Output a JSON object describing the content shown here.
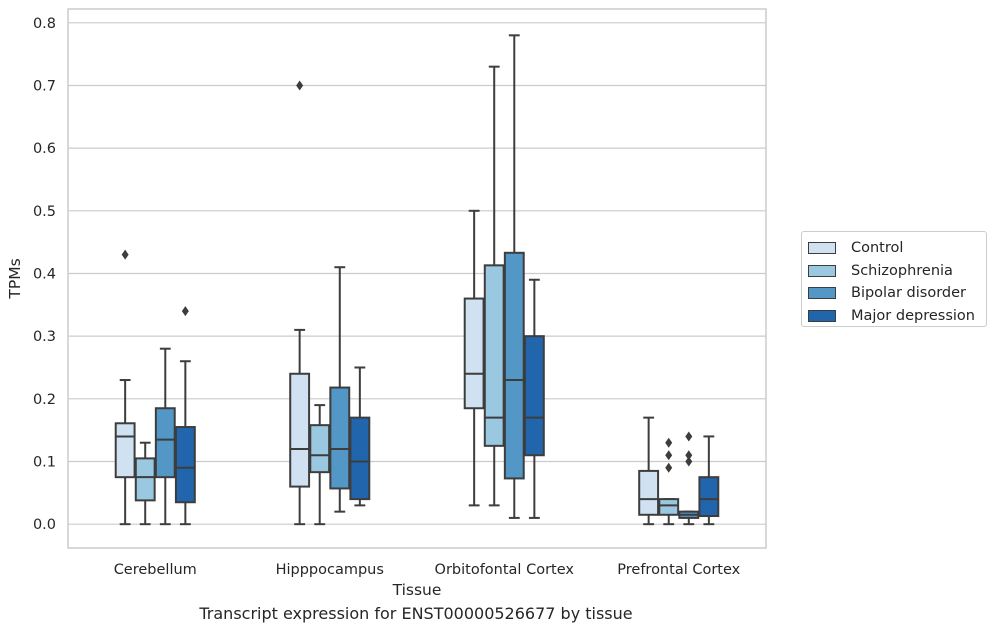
{
  "caption": "Transcript expression for ENST00000526677 by tissue",
  "chart_data": {
    "type": "box",
    "title": "",
    "xlabel": "Tissue",
    "ylabel": "TPMs",
    "ylim": [
      -0.038,
      0.822
    ],
    "yticks": [
      0.0,
      0.1,
      0.2,
      0.3,
      0.4,
      0.5,
      0.6,
      0.7,
      0.8
    ],
    "ytick_labels": [
      "0.0",
      "0.1",
      "0.2",
      "0.3",
      "0.4",
      "0.5",
      "0.6",
      "0.7",
      "0.8"
    ],
    "grid": "horizontal",
    "legend_position": "right",
    "categories": [
      "Cerebellum",
      "Hipppocampus",
      "Orbitofontal Cortex",
      "Prefrontal Cortex"
    ],
    "series": [
      {
        "name": "Control",
        "color": "#d0e1f2",
        "boxes": [
          {
            "whislo": 0.0,
            "q1": 0.075,
            "med": 0.14,
            "q3": 0.161,
            "whishi": 0.23,
            "fliers": [
              0.43
            ]
          },
          {
            "whislo": 0.0,
            "q1": 0.06,
            "med": 0.12,
            "q3": 0.24,
            "whishi": 0.31,
            "fliers": [
              0.7
            ]
          },
          {
            "whislo": 0.03,
            "q1": 0.185,
            "med": 0.24,
            "q3": 0.36,
            "whishi": 0.5,
            "fliers": []
          },
          {
            "whislo": 0.0,
            "q1": 0.015,
            "med": 0.04,
            "q3": 0.085,
            "whishi": 0.17,
            "fliers": []
          }
        ]
      },
      {
        "name": "Schizophrenia",
        "color": "#9ac8e0",
        "boxes": [
          {
            "whislo": 0.0,
            "q1": 0.038,
            "med": 0.075,
            "q3": 0.105,
            "whishi": 0.13,
            "fliers": []
          },
          {
            "whislo": 0.0,
            "q1": 0.083,
            "med": 0.11,
            "q3": 0.158,
            "whishi": 0.19,
            "fliers": []
          },
          {
            "whislo": 0.03,
            "q1": 0.125,
            "med": 0.17,
            "q3": 0.413,
            "whishi": 0.73,
            "fliers": []
          },
          {
            "whislo": 0.0,
            "q1": 0.015,
            "med": 0.03,
            "q3": 0.04,
            "whishi": 0.04,
            "fliers": [
              0.09,
              0.11,
              0.13
            ]
          }
        ]
      },
      {
        "name": "Bipolar disorder",
        "color": "#5297c6",
        "boxes": [
          {
            "whislo": 0.0,
            "q1": 0.075,
            "med": 0.135,
            "q3": 0.185,
            "whishi": 0.28,
            "fliers": []
          },
          {
            "whislo": 0.02,
            "q1": 0.057,
            "med": 0.12,
            "q3": 0.218,
            "whishi": 0.41,
            "fliers": []
          },
          {
            "whislo": 0.01,
            "q1": 0.073,
            "med": 0.23,
            "q3": 0.433,
            "whishi": 0.78,
            "fliers": []
          },
          {
            "whislo": 0.0,
            "q1": 0.01,
            "med": 0.015,
            "q3": 0.02,
            "whishi": 0.02,
            "fliers": [
              0.1,
              0.11,
              0.14
            ]
          }
        ]
      },
      {
        "name": "Major depression",
        "color": "#2166ac",
        "boxes": [
          {
            "whislo": 0.0,
            "q1": 0.035,
            "med": 0.09,
            "q3": 0.155,
            "whishi": 0.26,
            "fliers": [
              0.34
            ]
          },
          {
            "whislo": 0.03,
            "q1": 0.04,
            "med": 0.1,
            "q3": 0.17,
            "whishi": 0.25,
            "fliers": []
          },
          {
            "whislo": 0.01,
            "q1": 0.11,
            "med": 0.17,
            "q3": 0.3,
            "whishi": 0.39,
            "fliers": []
          },
          {
            "whislo": 0.0,
            "q1": 0.013,
            "med": 0.04,
            "q3": 0.075,
            "whishi": 0.14,
            "fliers": []
          }
        ]
      }
    ]
  }
}
